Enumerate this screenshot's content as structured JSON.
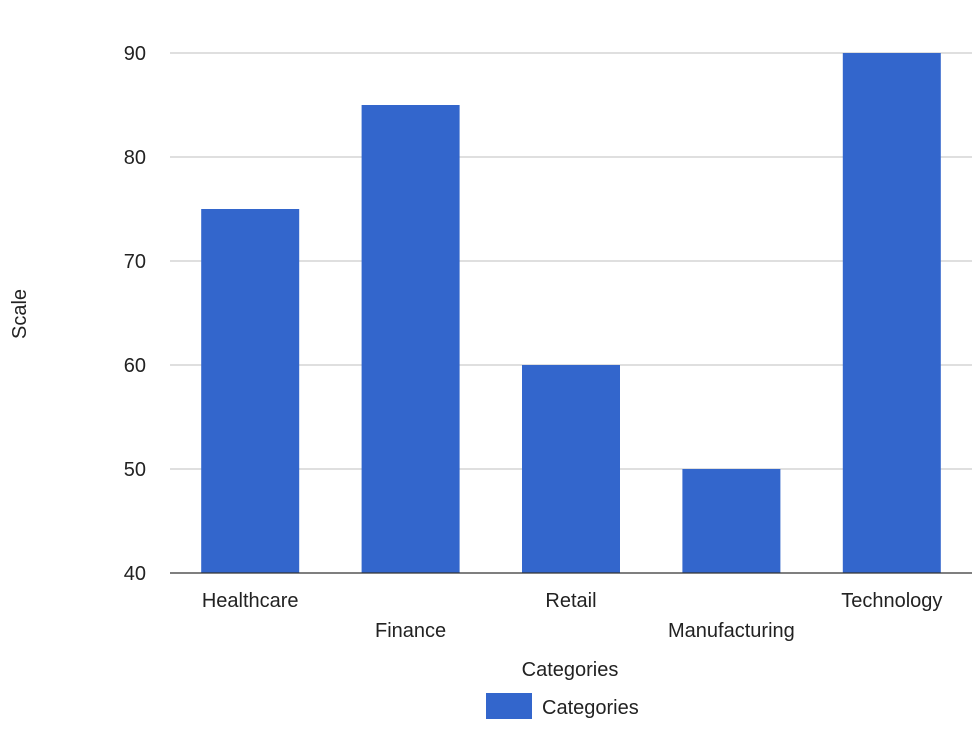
{
  "chart_data": {
    "type": "bar",
    "categories": [
      "Healthcare",
      "Finance",
      "Retail",
      "Manufacturing",
      "Technology"
    ],
    "series": [
      {
        "name": "Categories",
        "values": [
          75,
          85,
          60,
          50,
          90
        ],
        "color": "#3366cc"
      }
    ],
    "xlabel": "Categories",
    "ylabel": "Scale",
    "ylim": [
      40,
      90
    ],
    "yticks": [
      40,
      50,
      60,
      70,
      80,
      90
    ],
    "grid": true,
    "legend_position": "bottom",
    "gridline_color": "#cccccc"
  }
}
